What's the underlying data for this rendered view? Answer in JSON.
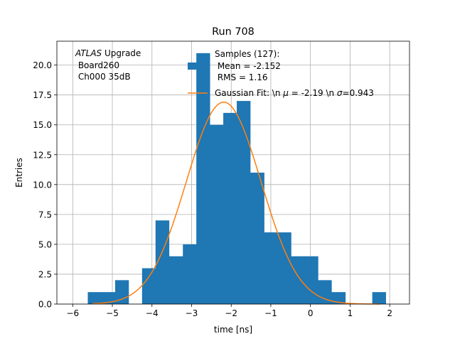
{
  "chart_data": {
    "type": "bar",
    "title": "Run 708",
    "xlabel": "time [ns]",
    "ylabel": "Entries",
    "xlim": [
      -6.4,
      2.5
    ],
    "ylim": [
      0,
      22
    ],
    "grid": true,
    "xticks": [
      -6,
      -5,
      -4,
      -3,
      -2,
      -1,
      0,
      1,
      2
    ],
    "xtick_labels": [
      "−6",
      "−5",
      "−4",
      "−3",
      "−2",
      "−1",
      "0",
      "1",
      "2"
    ],
    "yticks": [
      0,
      2.5,
      5,
      7.5,
      10,
      12.5,
      15,
      17.5,
      20
    ],
    "ytick_labels": [
      "0.0",
      "2.5",
      "5.0",
      "7.5",
      "10.0",
      "12.5",
      "15.0",
      "17.5",
      "20.0"
    ],
    "histogram": {
      "bins": [
        {
          "x0": -5.62,
          "x1": -5.27,
          "count": 1
        },
        {
          "x0": -5.27,
          "x1": -4.93,
          "count": 1
        },
        {
          "x0": -4.93,
          "x1": -4.59,
          "count": 2
        },
        {
          "x0": -4.59,
          "x1": -4.25,
          "count": 0
        },
        {
          "x0": -4.25,
          "x1": -3.91,
          "count": 3
        },
        {
          "x0": -3.91,
          "x1": -3.57,
          "count": 7
        },
        {
          "x0": -3.57,
          "x1": -3.22,
          "count": 4
        },
        {
          "x0": -3.22,
          "x1": -2.88,
          "count": 5
        },
        {
          "x0": -2.88,
          "x1": -2.54,
          "count": 21
        },
        {
          "x0": -2.54,
          "x1": -2.2,
          "count": 15
        },
        {
          "x0": -2.2,
          "x1": -1.86,
          "count": 16
        },
        {
          "x0": -1.86,
          "x1": -1.52,
          "count": 17
        },
        {
          "x0": -1.52,
          "x1": -1.17,
          "count": 11
        },
        {
          "x0": -1.17,
          "x1": -0.83,
          "count": 6
        },
        {
          "x0": -0.83,
          "x1": -0.49,
          "count": 6
        },
        {
          "x0": -0.49,
          "x1": -0.15,
          "count": 4
        },
        {
          "x0": -0.15,
          "x1": 0.19,
          "count": 4
        },
        {
          "x0": 0.19,
          "x1": 0.53,
          "count": 2
        },
        {
          "x0": 0.53,
          "x1": 0.88,
          "count": 1
        },
        {
          "x0": 0.88,
          "x1": 1.22,
          "count": 0
        },
        {
          "x0": 1.22,
          "x1": 1.56,
          "count": 0
        },
        {
          "x0": 1.56,
          "x1": 1.9,
          "count": 1
        }
      ]
    },
    "fit": {
      "type": "gaussian",
      "amplitude": 16.9,
      "mean": -2.19,
      "sigma": 0.943,
      "x_range": [
        -5.5,
        1.75
      ]
    },
    "series": [
      {
        "name": "Samples (127):\n Mean = -2.152\n RMS = 1.16",
        "kind": "histogram",
        "color": "#1f77b4"
      },
      {
        "name": "Gaussian Fit: \\n μ = -2.19 \\n σ=0.943",
        "kind": "line",
        "color": "#ff7f0e"
      }
    ],
    "legend": {
      "placement": "top-center",
      "samples_lines": [
        "Samples (127):",
        " Mean = -2.152",
        " RMS = 1.16"
      ],
      "fit_prefix": "Gaussian Fit: \\n ",
      "fit_mu_sym": "μ",
      "fit_mid": " = -2.19 \\n ",
      "fit_sigma_sym": "σ",
      "fit_suffix": "=0.943"
    },
    "annotation": {
      "italic": "ATLAS",
      "rest": " Upgrade",
      "line2": " Board260",
      "line3": " Ch000 35dB"
    }
  }
}
